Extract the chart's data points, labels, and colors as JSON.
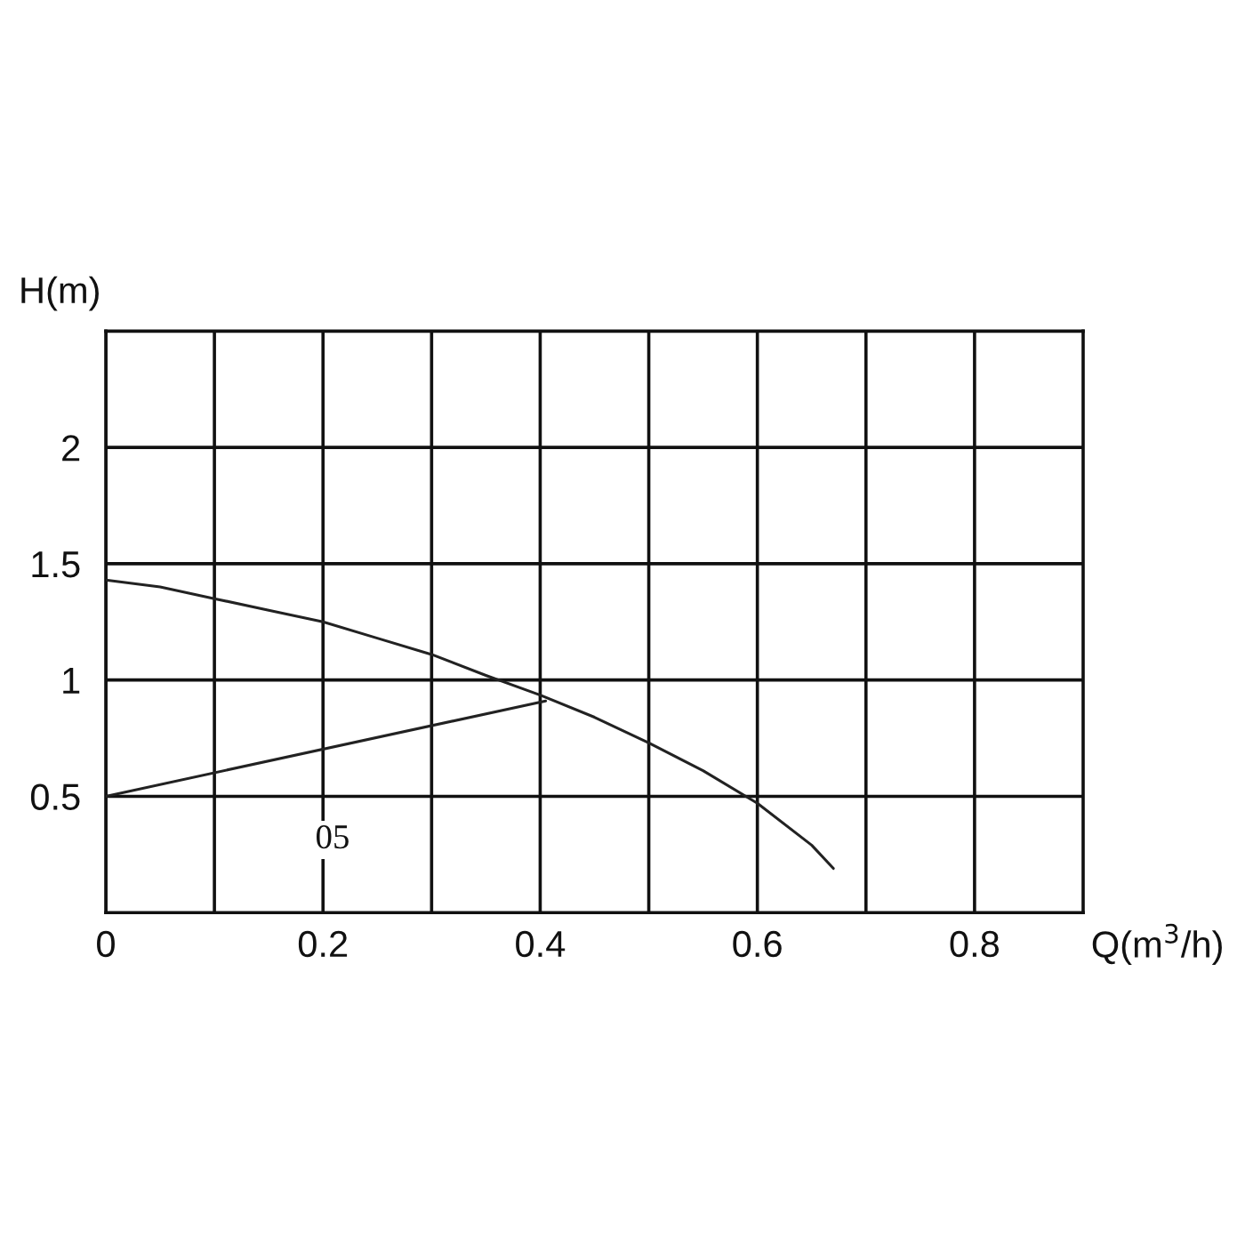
{
  "chart_data": {
    "type": "line",
    "xlabel": "Q(m$^{3}$/h)",
    "ylabel": "H(m)",
    "annotations": [
      "05"
    ],
    "series": [
      {
        "color": "#222222",
        "x": [
          0,
          0.05,
          0.1,
          0.15,
          0.2,
          0.25,
          0.3,
          0.35,
          0.4,
          0.45,
          0.5,
          0.55,
          0.6,
          0.65,
          0.67
        ],
        "values": [
          1.43,
          1.4,
          1.35,
          1.3,
          1.25,
          1.18,
          1.11,
          1.02,
          0.935,
          0.84,
          0.73,
          0.61,
          0.47,
          0.29,
          0.19
        ]
      },
      {
        "color": "#222222",
        "x": [
          0,
          0.405
        ],
        "values": [
          0.5,
          0.91
        ]
      }
    ],
    "xlim": [
      0,
      0.9
    ],
    "ylim": [
      0,
      2.5
    ],
    "xticks": [
      0,
      {
        "value": 0.1,
        "label": null
      },
      0.2,
      {
        "value": 0.3,
        "label": null
      },
      0.4,
      {
        "value": 0.5,
        "label": null
      },
      0.6,
      {
        "value": 0.7,
        "label": null
      },
      0.8
    ],
    "yticks": [
      0.5,
      1,
      1.5,
      2
    ],
    "grid": true,
    "line_style": "solid",
    "marker": "none"
  }
}
